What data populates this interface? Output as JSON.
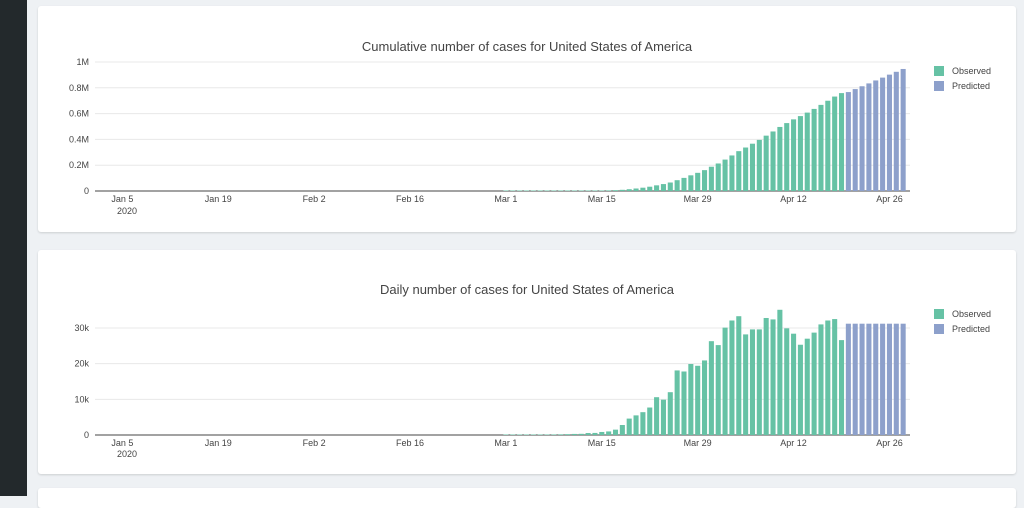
{
  "charts": [
    {
      "title": "Cumulative number of cases for United States of America",
      "y_tick_labels": [
        "0",
        "0.2M",
        "0.4M",
        "0.6M",
        "0.8M",
        "1M"
      ],
      "x_tick_labels": [
        "Jan 5",
        "Jan 19",
        "Feb 2",
        "Feb 16",
        "Mar 1",
        "Mar 15",
        "Mar 29",
        "Apr 12",
        "Apr 26"
      ],
      "x_year_label": "2020",
      "legend": [
        "Observed",
        "Predicted"
      ]
    },
    {
      "title": "Daily number of cases for United States of America",
      "y_tick_labels": [
        "0",
        "10k",
        "20k",
        "30k"
      ],
      "x_tick_labels": [
        "Jan 5",
        "Jan 19",
        "Feb 2",
        "Feb 16",
        "Mar 1",
        "Mar 15",
        "Mar 29",
        "Apr 12",
        "Apr 26"
      ],
      "x_year_label": "2020",
      "legend": [
        "Observed",
        "Predicted"
      ]
    }
  ],
  "colors": {
    "observed": "#66c2a5",
    "predicted": "#8da0cb",
    "grid": "#e8e8e8",
    "axis": "#444444"
  },
  "chart_data": [
    {
      "type": "bar",
      "title": "Cumulative number of cases for United States of America",
      "x_start": "2020-01-01",
      "x_ticks": [
        "2020-01-05",
        "2020-01-19",
        "2020-02-02",
        "2020-02-16",
        "2020-03-01",
        "2020-03-15",
        "2020-03-29",
        "2020-04-12",
        "2020-04-26"
      ],
      "ylim": [
        0,
        1000000
      ],
      "y_ticks": [
        0,
        200000,
        400000,
        600000,
        800000,
        1000000
      ],
      "series": [
        {
          "name": "Observed",
          "start": "2020-03-01",
          "values": [
            75,
            100,
            124,
            158,
            221,
            319,
            435,
            541,
            704,
            994,
            1301,
            1630,
            2183,
            2770,
            3613,
            4596,
            6344,
            9197,
            13779,
            19273,
            25600,
            33276,
            43847,
            53740,
            65778,
            83836,
            101657,
            121478,
            140886,
            161807,
            188172,
            213372,
            243453,
            275586,
            308850,
            337072,
            366667,
            396223,
            429052,
            461437,
            496535,
            526396,
            555313,
            580619,
            607670,
            636350,
            667592,
            699706,
            732197,
            758809
          ]
        },
        {
          "name": "Predicted",
          "start": "2020-04-20",
          "values": [
            767000,
            790000,
            812000,
            834000,
            857000,
            879000,
            902000,
            924000,
            946000
          ]
        }
      ]
    },
    {
      "type": "bar",
      "title": "Daily number of cases for United States of America",
      "x_start": "2020-01-01",
      "x_ticks": [
        "2020-01-05",
        "2020-01-19",
        "2020-02-02",
        "2020-02-16",
        "2020-03-01",
        "2020-03-15",
        "2020-03-29",
        "2020-04-12",
        "2020-04-26"
      ],
      "ylim": [
        0,
        35600
      ],
      "y_ticks": [
        0,
        10000,
        20000,
        30000
      ],
      "series": [
        {
          "name": "Observed",
          "start": "2020-03-01",
          "values": [
            10,
            20,
            30,
            50,
            70,
            100,
            120,
            150,
            180,
            230,
            300,
            330,
            550,
            580,
            850,
            1000,
            1500,
            2800,
            4600,
            5500,
            6400,
            7700,
            10600,
            9900,
            12000,
            18100,
            17800,
            19900,
            19400,
            20900,
            26300,
            25200,
            30100,
            32100,
            33300,
            28200,
            29600,
            29600,
            32800,
            32400,
            35100,
            29900,
            28400,
            25300,
            27000,
            28700,
            31000,
            32100,
            32500,
            26600
          ]
        },
        {
          "name": "Predicted",
          "start": "2020-04-20",
          "values": [
            31200,
            31200,
            31200,
            31200,
            31200,
            31200,
            31200,
            31200,
            31200
          ]
        }
      ]
    }
  ]
}
